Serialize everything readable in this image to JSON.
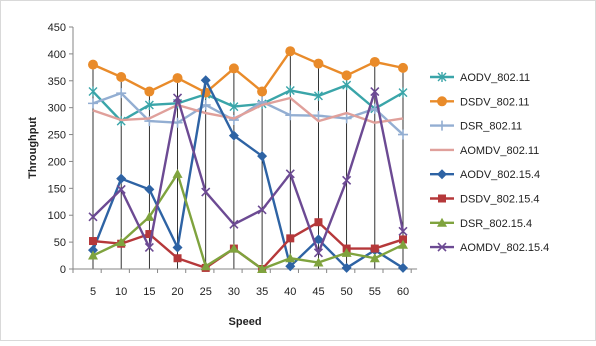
{
  "chart_data": {
    "type": "line",
    "title": "",
    "xlabel": "Speed",
    "ylabel": "Throughput",
    "ylim": [
      0,
      450
    ],
    "yticks": [
      0,
      50,
      100,
      150,
      200,
      250,
      300,
      350,
      400,
      450
    ],
    "categories": [
      "5",
      "10",
      "15",
      "20",
      "25",
      "30",
      "35",
      "40",
      "45",
      "50",
      "55",
      "60"
    ],
    "grid": "none",
    "vertical_drop_lines": true,
    "legend_position": "right",
    "series": [
      {
        "name": "AODV_802.11",
        "color": "#3aa5a9",
        "marker": "asterisk",
        "values": [
          330,
          275,
          305,
          308,
          325,
          302,
          307,
          332,
          322,
          342,
          298,
          328
        ]
      },
      {
        "name": "DSDV_802.11",
        "color": "#e98b2a",
        "marker": "circle",
        "values": [
          380,
          357,
          330,
          355,
          328,
          373,
          330,
          405,
          382,
          360,
          385,
          374
        ]
      },
      {
        "name": "DSR_802.11",
        "color": "#93aed2",
        "marker": "plus",
        "values": [
          308,
          327,
          275,
          272,
          305,
          277,
          311,
          286,
          285,
          280,
          298,
          250
        ]
      },
      {
        "name": "AOMDV_802.11",
        "color": "#e0a09b",
        "marker": "none",
        "values": [
          295,
          277,
          280,
          305,
          290,
          280,
          305,
          318,
          275,
          290,
          272,
          280
        ]
      },
      {
        "name": "AODV_802.15.4",
        "color": "#2e63a4",
        "marker": "diamond",
        "values": [
          35,
          168,
          148,
          40,
          351,
          248,
          210,
          5,
          55,
          2,
          35,
          2
        ]
      },
      {
        "name": "DSDV_802.15.4",
        "color": "#b5383a",
        "marker": "square",
        "values": [
          52,
          47,
          65,
          20,
          2,
          38,
          0,
          57,
          87,
          38,
          38,
          55
        ]
      },
      {
        "name": "DSR_802.15.4",
        "color": "#7fa33e",
        "marker": "triangle",
        "values": [
          25,
          50,
          97,
          177,
          5,
          38,
          0,
          20,
          12,
          30,
          20,
          45
        ]
      },
      {
        "name": "AOMDV_802.15.4",
        "color": "#6c4a93",
        "marker": "x",
        "values": [
          97,
          148,
          40,
          318,
          143,
          83,
          110,
          177,
          30,
          165,
          330,
          70
        ]
      }
    ]
  }
}
